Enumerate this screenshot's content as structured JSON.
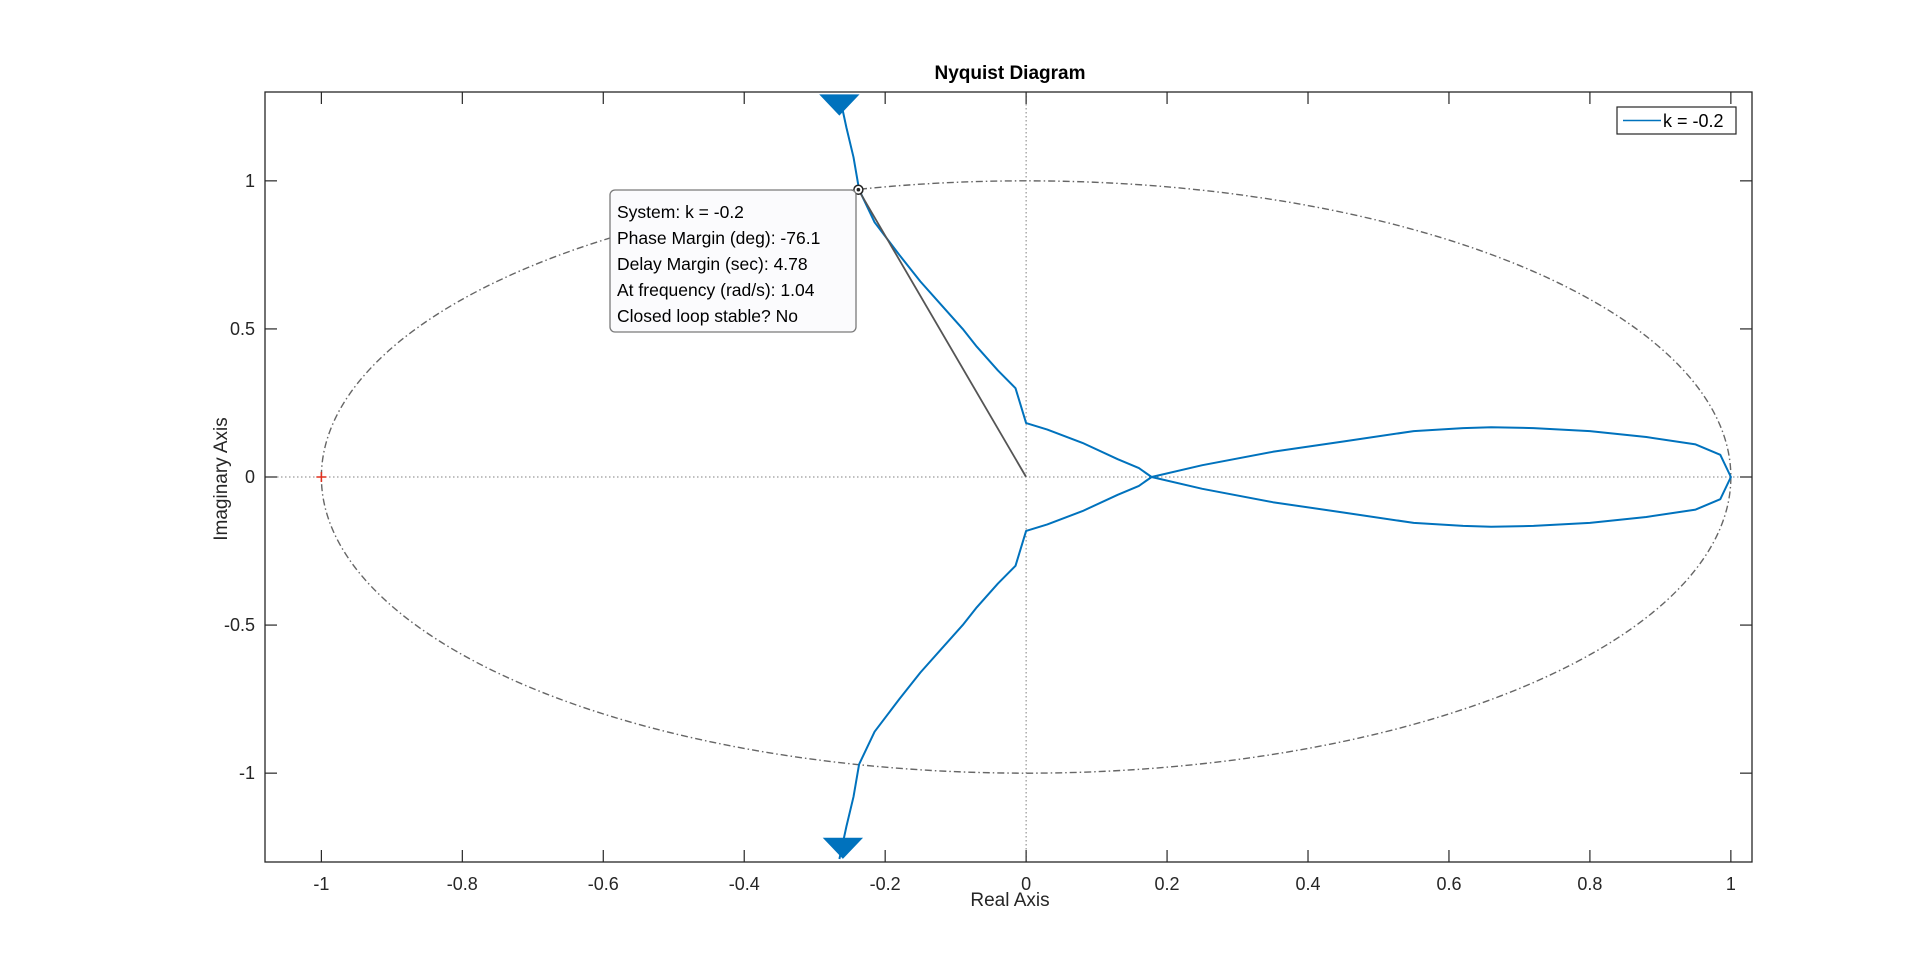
{
  "chart_data": {
    "type": "line",
    "title": "Nyquist Diagram",
    "xlabel": "Real Axis",
    "ylabel": "Imaginary Axis",
    "xlim": [
      -1.08,
      1.03
    ],
    "ylim": [
      -1.3,
      1.3
    ],
    "xticks": [
      -1,
      -0.8,
      -0.6,
      -0.4,
      -0.2,
      0,
      0.2,
      0.4,
      0.6,
      0.8,
      1
    ],
    "xtick_labels": [
      "-1",
      "-0.8",
      "-0.6",
      "-0.4",
      "-0.2",
      "0",
      "0.2",
      "0.4",
      "0.6",
      "0.8",
      "1"
    ],
    "yticks": [
      -1,
      -0.5,
      0,
      0.5,
      1
    ],
    "ytick_labels": [
      "-1",
      "-0.5",
      "0",
      "0.5",
      "1"
    ],
    "grid": false,
    "legend_position": "top-right",
    "colors": {
      "series": "#0072BD",
      "unit_circle": "#666666",
      "critical_point": "#E0301E",
      "axes": "#262626",
      "crosshair": "#808080"
    },
    "series": [
      {
        "name": "k = -0.2",
        "branch_upper": [
          [
            -0.265,
            1.29
          ],
          [
            -0.255,
            1.18
          ],
          [
            -0.245,
            1.08
          ],
          [
            -0.237,
            0.97
          ],
          [
            -0.215,
            0.86
          ],
          [
            -0.18,
            0.75
          ],
          [
            -0.15,
            0.66
          ],
          [
            -0.12,
            0.58
          ],
          [
            -0.09,
            0.5
          ],
          [
            -0.07,
            0.44
          ],
          [
            -0.04,
            0.36
          ],
          [
            -0.015,
            0.3
          ],
          [
            0.0,
            0.182
          ],
          [
            0.03,
            0.16
          ],
          [
            0.08,
            0.115
          ],
          [
            0.13,
            0.06
          ],
          [
            0.16,
            0.03
          ],
          [
            0.178,
            0.0
          ]
        ],
        "branch_lower": [
          [
            0.178,
            0.0
          ],
          [
            0.16,
            -0.03
          ],
          [
            0.13,
            -0.06
          ],
          [
            0.08,
            -0.115
          ],
          [
            0.03,
            -0.16
          ],
          [
            0.0,
            -0.182
          ],
          [
            -0.015,
            -0.3
          ],
          [
            -0.04,
            -0.36
          ],
          [
            -0.07,
            -0.44
          ],
          [
            -0.09,
            -0.5
          ],
          [
            -0.12,
            -0.58
          ],
          [
            -0.15,
            -0.66
          ],
          [
            -0.18,
            -0.75
          ],
          [
            -0.215,
            -0.86
          ],
          [
            -0.237,
            -0.97
          ],
          [
            -0.245,
            -1.08
          ],
          [
            -0.255,
            -1.18
          ],
          [
            -0.265,
            -1.29
          ]
        ],
        "loop": [
          [
            0.178,
            0.0
          ],
          [
            0.25,
            0.04
          ],
          [
            0.35,
            0.085
          ],
          [
            0.45,
            0.12
          ],
          [
            0.55,
            0.155
          ],
          [
            0.62,
            0.165
          ],
          [
            0.66,
            0.168
          ],
          [
            0.72,
            0.165
          ],
          [
            0.8,
            0.155
          ],
          [
            0.88,
            0.135
          ],
          [
            0.95,
            0.11
          ],
          [
            0.985,
            0.075
          ],
          [
            1.0,
            0.0
          ],
          [
            0.985,
            -0.075
          ],
          [
            0.95,
            -0.11
          ],
          [
            0.88,
            -0.135
          ],
          [
            0.8,
            -0.155
          ],
          [
            0.72,
            -0.165
          ],
          [
            0.66,
            -0.168
          ],
          [
            0.62,
            -0.165
          ],
          [
            0.55,
            -0.155
          ],
          [
            0.45,
            -0.12
          ],
          [
            0.35,
            -0.085
          ],
          [
            0.25,
            -0.04
          ],
          [
            0.178,
            0.0
          ]
        ],
        "arrows": [
          [
            -0.265,
            1.26,
            "down"
          ],
          [
            -0.26,
            -1.25,
            "down"
          ]
        ]
      }
    ],
    "critical_point": [
      -1,
      0
    ],
    "datatip": {
      "point": [
        -0.238,
        0.97
      ],
      "lines": [
        "System: k = -0.2",
        "Phase Margin (deg): -76.1",
        "Delay Margin (sec): 4.78",
        "At frequency (rad/s): 1.04",
        "Closed loop stable? No"
      ]
    }
  }
}
